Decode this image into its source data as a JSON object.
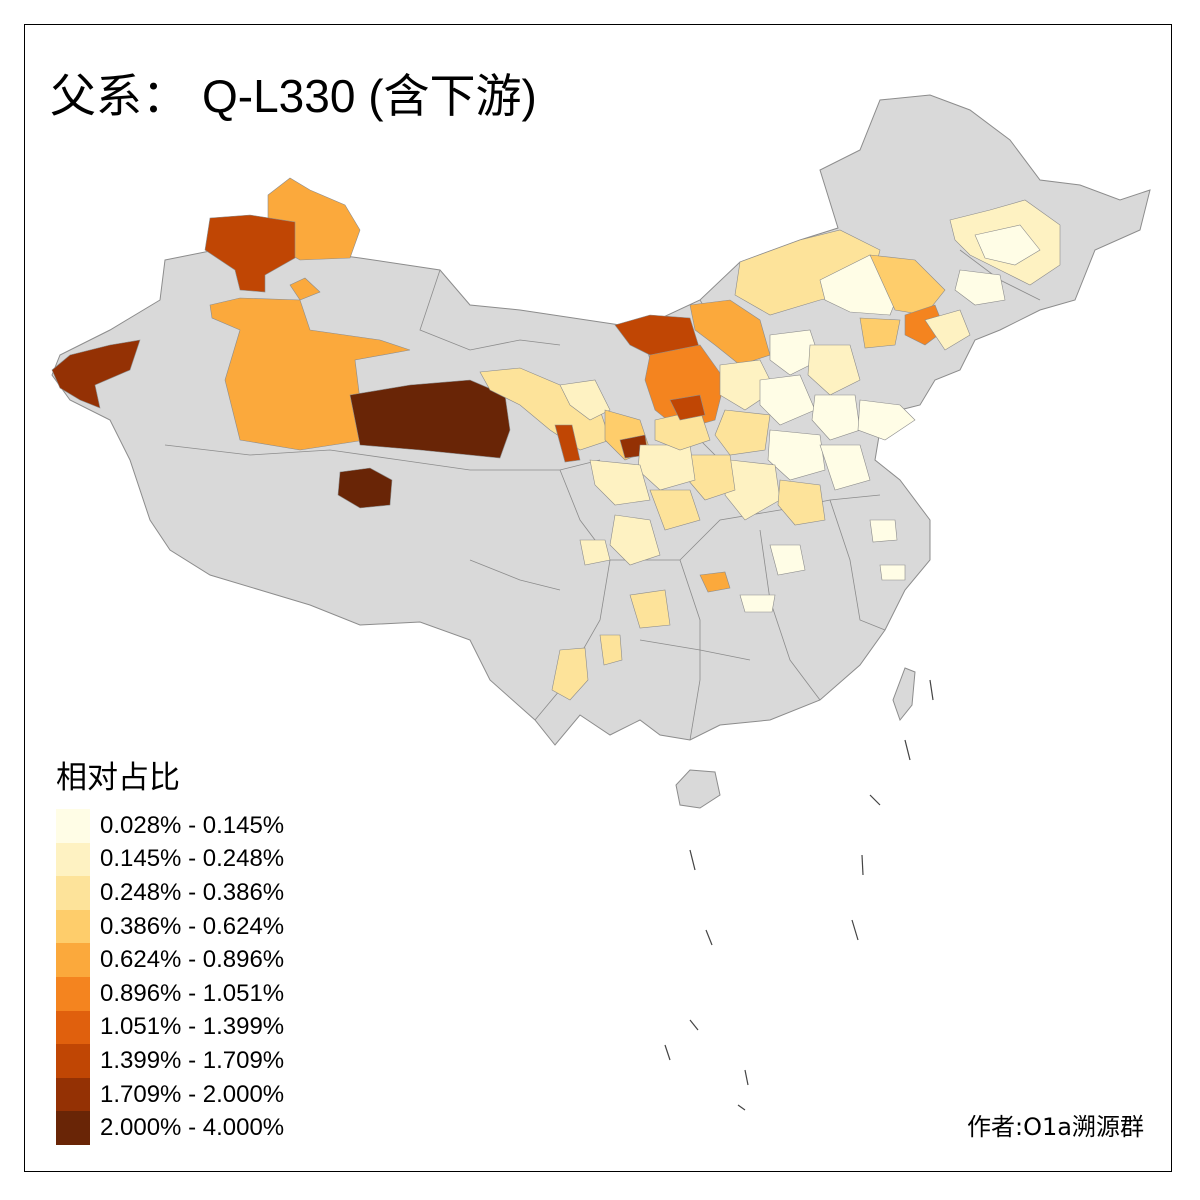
{
  "title": {
    "prefix": "父系：",
    "haplogroup": "Q-L330 (含下游)"
  },
  "legend": {
    "title": "相对占比",
    "bins": [
      {
        "label": "0.028% - 0.145%",
        "color": "#fffde6"
      },
      {
        "label": "0.145% - 0.248%",
        "color": "#fef2c2"
      },
      {
        "label": "0.248% - 0.386%",
        "color": "#fde39a"
      },
      {
        "label": "0.386% - 0.624%",
        "color": "#fecd6b"
      },
      {
        "label": "0.624% - 0.896%",
        "color": "#fba93c"
      },
      {
        "label": "0.896% - 1.051%",
        "color": "#f4841f"
      },
      {
        "label": "1.051% - 1.399%",
        "color": "#e0600d"
      },
      {
        "label": "1.399% - 1.709%",
        "color": "#c04604"
      },
      {
        "label": "1.709% - 2.000%",
        "color": "#943104"
      },
      {
        "label": "2.000% - 4.000%",
        "color": "#692506"
      }
    ]
  },
  "map": {
    "no_data_color": "#d9d9d9",
    "border_color": "#8c8c8c"
  },
  "credit": "作者:O1a溯源群"
}
